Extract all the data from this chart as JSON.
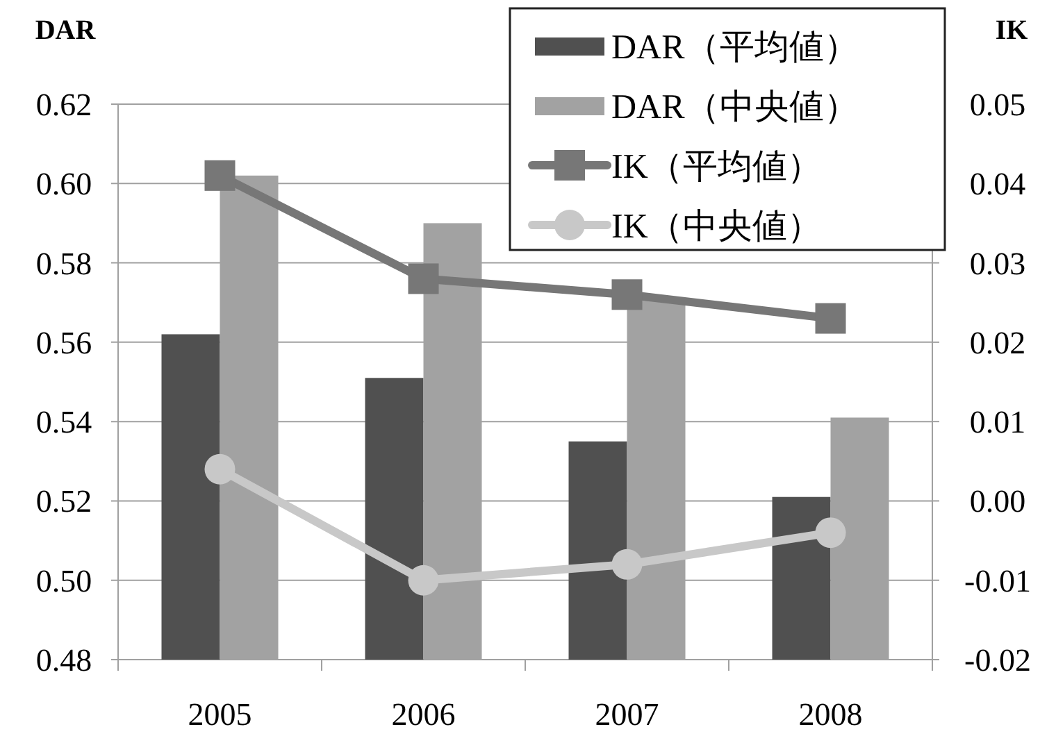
{
  "chart_data": {
    "type": "bar",
    "ylabel": "DAR",
    "y2label": "IK",
    "categories": [
      "2005",
      "2006",
      "2007",
      "2008"
    ],
    "series": [
      {
        "name": "DAR（平均値）",
        "color": "#505050",
        "values": [
          0.562,
          0.551,
          0.535,
          0.521
        ]
      },
      {
        "name": "DAR（中央値）",
        "color": "#a2a2a2",
        "values": [
          0.602,
          0.59,
          0.571,
          0.541
        ]
      },
      {
        "name": "IK（平均値）",
        "type": "line",
        "axis": "y2",
        "marker": "square",
        "color": "#777777",
        "values": [
          0.041,
          0.028,
          0.026,
          0.023
        ]
      },
      {
        "name": "IK（中央値）",
        "type": "line",
        "axis": "y2",
        "marker": "circle",
        "color": "#c8c8c8",
        "values": [
          0.004,
          -0.01,
          -0.008,
          -0.004
        ]
      }
    ],
    "ylim": [
      0.48,
      0.62
    ],
    "yticks": [
      {
        "value": 0.48,
        "label": "0.48"
      },
      {
        "value": 0.5,
        "label": "0.50"
      },
      {
        "value": 0.52,
        "label": "0.52"
      },
      {
        "value": 0.54,
        "label": "0.54"
      },
      {
        "value": 0.56,
        "label": "0.56"
      },
      {
        "value": 0.58,
        "label": "0.58"
      },
      {
        "value": 0.6,
        "label": "0.60"
      },
      {
        "value": 0.62,
        "label": "0.62"
      }
    ],
    "y2lim": [
      -0.02,
      0.05
    ],
    "y2ticks": [
      {
        "value": -0.02,
        "label": "-0.02"
      },
      {
        "value": -0.01,
        "label": "-0.01"
      },
      {
        "value": 0,
        "label": "0.00"
      },
      {
        "value": 0.01,
        "label": "0.01"
      },
      {
        "value": 0.02,
        "label": "0.02"
      },
      {
        "value": 0.03,
        "label": "0.03"
      },
      {
        "value": 0.04,
        "label": "0.04"
      },
      {
        "value": 0.05,
        "label": "0.05"
      }
    ],
    "grid": "y",
    "legend": "top right"
  }
}
